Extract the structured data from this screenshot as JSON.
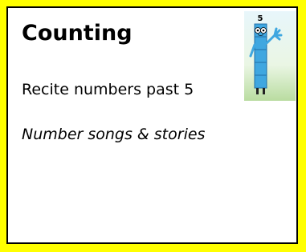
{
  "card": {
    "title": "Counting",
    "items": [
      "Recite numbers past 5",
      "Number songs & stories"
    ],
    "image": {
      "label": "5"
    }
  }
}
